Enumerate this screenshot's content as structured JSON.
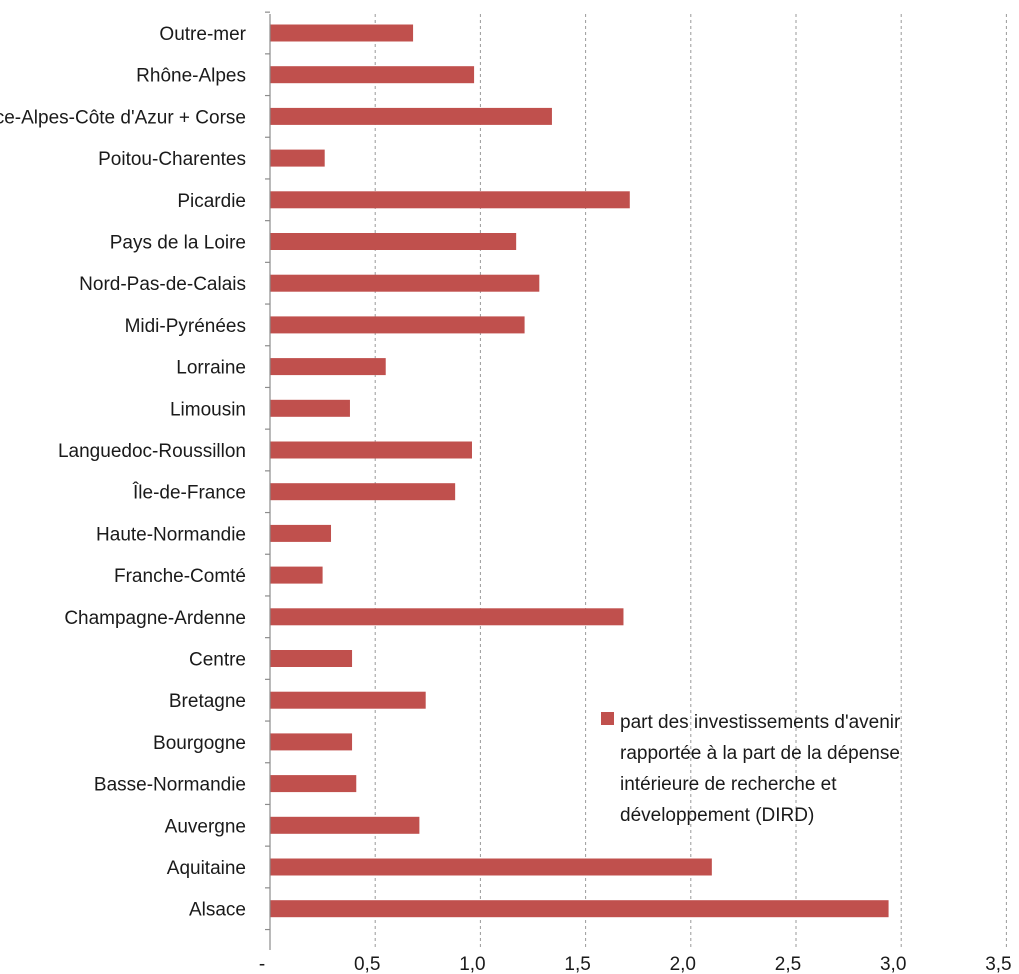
{
  "chart_data": {
    "type": "bar",
    "orientation": "horizontal",
    "categories": [
      "Outre-mer",
      "Rhône-Alpes",
      "Provence-Alpes-Côte d'Azur + Corse",
      "Poitou-Charentes",
      "Picardie",
      "Pays de la Loire",
      "Nord-Pas-de-Calais",
      "Midi-Pyrénées",
      "Lorraine",
      "Limousin",
      "Languedoc-Roussillon",
      "Île-de-France",
      "Haute-Normandie",
      "Franche-Comté",
      "Champagne-Ardenne",
      "Centre",
      "Bretagne",
      "Bourgogne",
      "Basse-Normandie",
      "Auvergne",
      "Aquitaine",
      "Alsace"
    ],
    "series": [
      {
        "name": "part des investissements d'avenir rapportée à la part de la dépense intérieure de recherche et développement (DIRD)",
        "values": [
          0.68,
          0.97,
          1.34,
          0.26,
          1.71,
          1.17,
          1.28,
          1.21,
          0.55,
          0.38,
          0.96,
          0.88,
          0.29,
          0.25,
          1.68,
          0.39,
          0.74,
          0.39,
          0.41,
          0.71,
          2.1,
          2.94
        ],
        "color": "#c0504d"
      }
    ],
    "xlim": [
      0,
      3.5
    ],
    "x_ticks": [
      "-",
      "0,5",
      "1,0",
      "1,5",
      "2,0",
      "2,5",
      "3,0",
      "3,5"
    ],
    "title": "",
    "xlabel": "",
    "ylabel": "",
    "grid": "vertical dashed",
    "legend": {
      "placement": "right-middle",
      "lines": [
        "part des investissements d'avenir",
        "rapportée à la part de la dépense",
        "intérieure de recherche et",
        "développement (DIRD)"
      ]
    }
  }
}
